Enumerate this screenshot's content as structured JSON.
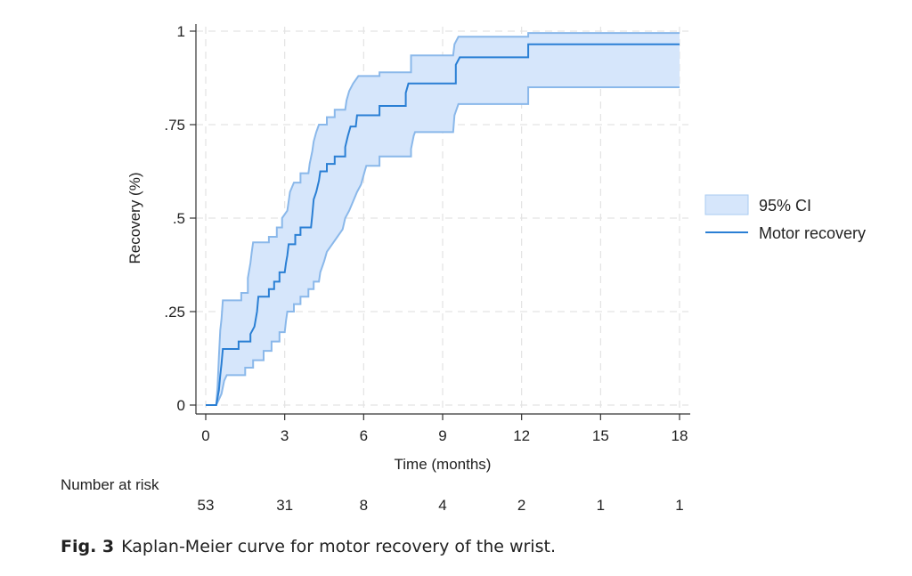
{
  "chart_data": {
    "type": "line",
    "title": "",
    "xlabel": "Time (months)",
    "ylabel": "Recovery (%)",
    "xlim": [
      0,
      18
    ],
    "ylim": [
      0,
      1
    ],
    "xticks": [
      0,
      3,
      6,
      9,
      12,
      15,
      18
    ],
    "xtick_labels": [
      "0",
      "3",
      "6",
      "9",
      "12",
      "15",
      "18"
    ],
    "yticks": [
      0,
      0.25,
      0.5,
      0.75,
      1
    ],
    "ytick_labels": [
      "0",
      ".25",
      ".5",
      ".75",
      "1"
    ],
    "grid": true,
    "legend_position": "right",
    "legend": [
      {
        "label": "95% CI",
        "kind": "area",
        "color": "#d6e6fb",
        "edge": "#8ab8ea"
      },
      {
        "label": "Motor recovery",
        "kind": "line",
        "color": "#2a7fd4"
      }
    ],
    "series": [
      {
        "name": "Motor recovery",
        "step": true,
        "points": [
          [
            0,
            0
          ],
          [
            0.4,
            0
          ],
          [
            0.5,
            0.04
          ],
          [
            0.55,
            0.08
          ],
          [
            0.6,
            0.11
          ],
          [
            0.65,
            0.15
          ],
          [
            1.25,
            0.15
          ],
          [
            1.25,
            0.17
          ],
          [
            1.7,
            0.17
          ],
          [
            1.7,
            0.19
          ],
          [
            1.85,
            0.21
          ],
          [
            1.95,
            0.25
          ],
          [
            2.0,
            0.29
          ],
          [
            2.4,
            0.29
          ],
          [
            2.4,
            0.31
          ],
          [
            2.6,
            0.31
          ],
          [
            2.6,
            0.33
          ],
          [
            2.8,
            0.33
          ],
          [
            2.8,
            0.355
          ],
          [
            3.0,
            0.355
          ],
          [
            3.05,
            0.38
          ],
          [
            3.1,
            0.4
          ],
          [
            3.15,
            0.43
          ],
          [
            3.4,
            0.43
          ],
          [
            3.4,
            0.455
          ],
          [
            3.6,
            0.455
          ],
          [
            3.6,
            0.475
          ],
          [
            4.0,
            0.475
          ],
          [
            4.05,
            0.51
          ],
          [
            4.1,
            0.55
          ],
          [
            4.2,
            0.57
          ],
          [
            4.3,
            0.6
          ],
          [
            4.35,
            0.625
          ],
          [
            4.6,
            0.625
          ],
          [
            4.6,
            0.645
          ],
          [
            4.9,
            0.645
          ],
          [
            4.9,
            0.665
          ],
          [
            5.3,
            0.665
          ],
          [
            5.3,
            0.69
          ],
          [
            5.4,
            0.72
          ],
          [
            5.5,
            0.745
          ],
          [
            5.7,
            0.745
          ],
          [
            5.75,
            0.775
          ],
          [
            6.6,
            0.775
          ],
          [
            6.6,
            0.8
          ],
          [
            7.6,
            0.8
          ],
          [
            7.6,
            0.835
          ],
          [
            7.7,
            0.86
          ],
          [
            9.5,
            0.86
          ],
          [
            9.5,
            0.91
          ],
          [
            9.65,
            0.93
          ],
          [
            12.25,
            0.93
          ],
          [
            12.25,
            0.965
          ],
          [
            18,
            0.965
          ]
        ]
      },
      {
        "name": "95% CI upper",
        "step": true,
        "points": [
          [
            0,
            0
          ],
          [
            0.4,
            0
          ],
          [
            0.45,
            0.05
          ],
          [
            0.5,
            0.13
          ],
          [
            0.55,
            0.2
          ],
          [
            0.6,
            0.23
          ],
          [
            0.65,
            0.28
          ],
          [
            1.35,
            0.28
          ],
          [
            1.35,
            0.3
          ],
          [
            1.6,
            0.3
          ],
          [
            1.6,
            0.34
          ],
          [
            1.7,
            0.38
          ],
          [
            1.75,
            0.41
          ],
          [
            1.8,
            0.435
          ],
          [
            2.4,
            0.435
          ],
          [
            2.4,
            0.45
          ],
          [
            2.7,
            0.45
          ],
          [
            2.7,
            0.475
          ],
          [
            2.9,
            0.475
          ],
          [
            2.9,
            0.5
          ],
          [
            3.1,
            0.52
          ],
          [
            3.15,
            0.545
          ],
          [
            3.2,
            0.57
          ],
          [
            3.35,
            0.595
          ],
          [
            3.6,
            0.595
          ],
          [
            3.6,
            0.62
          ],
          [
            3.9,
            0.62
          ],
          [
            3.95,
            0.645
          ],
          [
            4.05,
            0.68
          ],
          [
            4.1,
            0.705
          ],
          [
            4.2,
            0.73
          ],
          [
            4.3,
            0.75
          ],
          [
            4.6,
            0.75
          ],
          [
            4.6,
            0.77
          ],
          [
            4.9,
            0.77
          ],
          [
            4.9,
            0.79
          ],
          [
            5.3,
            0.79
          ],
          [
            5.35,
            0.815
          ],
          [
            5.45,
            0.84
          ],
          [
            5.6,
            0.86
          ],
          [
            5.8,
            0.88
          ],
          [
            6.6,
            0.88
          ],
          [
            6.6,
            0.89
          ],
          [
            7.8,
            0.89
          ],
          [
            7.8,
            0.935
          ],
          [
            9.4,
            0.935
          ],
          [
            9.45,
            0.965
          ],
          [
            9.6,
            0.985
          ],
          [
            12.25,
            0.985
          ],
          [
            12.25,
            0.995
          ],
          [
            18,
            0.995
          ]
        ]
      },
      {
        "name": "95% CI lower",
        "step": true,
        "points": [
          [
            0,
            0
          ],
          [
            0.4,
            0
          ],
          [
            0.5,
            0.015
          ],
          [
            0.6,
            0.03
          ],
          [
            0.7,
            0.065
          ],
          [
            0.8,
            0.08
          ],
          [
            1.5,
            0.08
          ],
          [
            1.5,
            0.1
          ],
          [
            1.8,
            0.1
          ],
          [
            1.8,
            0.12
          ],
          [
            2.2,
            0.12
          ],
          [
            2.2,
            0.145
          ],
          [
            2.5,
            0.145
          ],
          [
            2.5,
            0.17
          ],
          [
            2.8,
            0.17
          ],
          [
            2.8,
            0.195
          ],
          [
            3.0,
            0.195
          ],
          [
            3.05,
            0.225
          ],
          [
            3.1,
            0.25
          ],
          [
            3.35,
            0.25
          ],
          [
            3.35,
            0.27
          ],
          [
            3.6,
            0.27
          ],
          [
            3.6,
            0.29
          ],
          [
            3.9,
            0.29
          ],
          [
            3.9,
            0.31
          ],
          [
            4.1,
            0.31
          ],
          [
            4.1,
            0.33
          ],
          [
            4.3,
            0.33
          ],
          [
            4.35,
            0.355
          ],
          [
            4.5,
            0.385
          ],
          [
            4.6,
            0.41
          ],
          [
            4.8,
            0.43
          ],
          [
            5.0,
            0.45
          ],
          [
            5.2,
            0.47
          ],
          [
            5.3,
            0.5
          ],
          [
            5.45,
            0.52
          ],
          [
            5.6,
            0.545
          ],
          [
            5.75,
            0.57
          ],
          [
            5.9,
            0.59
          ],
          [
            6.0,
            0.615
          ],
          [
            6.1,
            0.64
          ],
          [
            6.6,
            0.64
          ],
          [
            6.6,
            0.665
          ],
          [
            7.8,
            0.665
          ],
          [
            7.8,
            0.685
          ],
          [
            7.9,
            0.72
          ],
          [
            7.95,
            0.73
          ],
          [
            9.4,
            0.73
          ],
          [
            9.45,
            0.775
          ],
          [
            9.6,
            0.805
          ],
          [
            12.25,
            0.805
          ],
          [
            12.25,
            0.85
          ],
          [
            18,
            0.85
          ]
        ]
      }
    ],
    "risk_table": {
      "title": "Number at risk",
      "times": [
        0,
        3,
        6,
        9,
        12,
        15,
        18
      ],
      "values": [
        "53",
        "31",
        "8",
        "4",
        "2",
        "1",
        "1"
      ]
    }
  },
  "caption": {
    "label": "Fig. 3",
    "text": "Kaplan-Meier curve for motor recovery of the wrist."
  }
}
